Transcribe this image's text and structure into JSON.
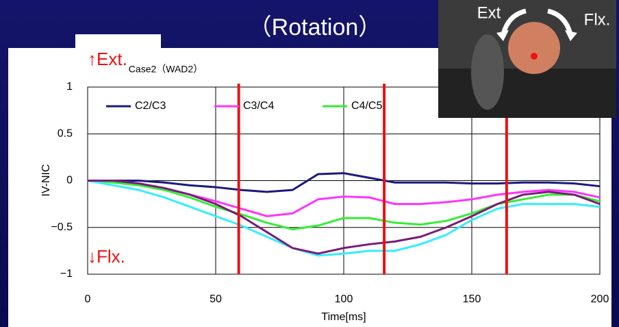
{
  "slide_title": "（Rotation）",
  "photo_labels": {
    "left": "Ext",
    "right": "Flx."
  },
  "chart_data": {
    "type": "line",
    "title": "Case2（WAD2）",
    "x_label": "Time[ms]",
    "y_label": "IV-NIC",
    "annotations": {
      "top": "↑Ext.",
      "bottom": "↓Flx."
    },
    "x": [
      0,
      10,
      20,
      30,
      40,
      50,
      60,
      70,
      80,
      90,
      100,
      110,
      120,
      130,
      140,
      150,
      160,
      170,
      180,
      190,
      200
    ],
    "series": [
      {
        "name": "C2/C3",
        "color": "#1a1a80",
        "values": [
          0,
          0,
          0,
          -0.02,
          -0.05,
          -0.07,
          -0.1,
          -0.12,
          -0.1,
          0.07,
          0.08,
          0.03,
          -0.02,
          -0.02,
          -0.02,
          -0.03,
          -0.03,
          -0.02,
          -0.02,
          -0.03,
          -0.06
        ]
      },
      {
        "name": "C3/C4",
        "color": "#ff33ff",
        "values": [
          0,
          0,
          -0.03,
          -0.08,
          -0.15,
          -0.22,
          -0.3,
          -0.38,
          -0.35,
          -0.2,
          -0.17,
          -0.18,
          -0.25,
          -0.25,
          -0.23,
          -0.2,
          -0.15,
          -0.12,
          -0.1,
          -0.12,
          -0.18
        ]
      },
      {
        "name": "C4/C5",
        "color": "#33ee33",
        "values": [
          0,
          -0.02,
          -0.05,
          -0.1,
          -0.18,
          -0.28,
          -0.36,
          -0.45,
          -0.52,
          -0.48,
          -0.4,
          -0.4,
          -0.45,
          -0.47,
          -0.43,
          -0.35,
          -0.25,
          -0.2,
          -0.15,
          -0.15,
          -0.22
        ]
      },
      {
        "color": "#33eeff",
        "values": [
          0,
          -0.05,
          -0.1,
          -0.18,
          -0.28,
          -0.38,
          -0.48,
          -0.6,
          -0.72,
          -0.8,
          -0.78,
          -0.75,
          -0.75,
          -0.68,
          -0.58,
          -0.42,
          -0.3,
          -0.25,
          -0.25,
          -0.25,
          -0.28
        ]
      },
      {
        "color": "#7a1a7a",
        "values": [
          0,
          0,
          -0.03,
          -0.08,
          -0.15,
          -0.25,
          -0.38,
          -0.55,
          -0.72,
          -0.78,
          -0.72,
          -0.68,
          -0.65,
          -0.6,
          -0.5,
          -0.38,
          -0.25,
          -0.15,
          -0.12,
          -0.15,
          -0.25
        ]
      }
    ],
    "vlines": [
      59,
      115.8,
      163.6
    ],
    "vline_color": "#ee1111",
    "xlim": [
      0,
      200
    ],
    "xticks": [
      0,
      50,
      100,
      150,
      200
    ],
    "ylim": [
      -1,
      1
    ],
    "yticks": [
      {
        "value": -1,
        "label": "−1"
      },
      {
        "value": -0.5,
        "label": "−0.5"
      },
      0,
      0.5,
      1
    ],
    "grid": true
  }
}
